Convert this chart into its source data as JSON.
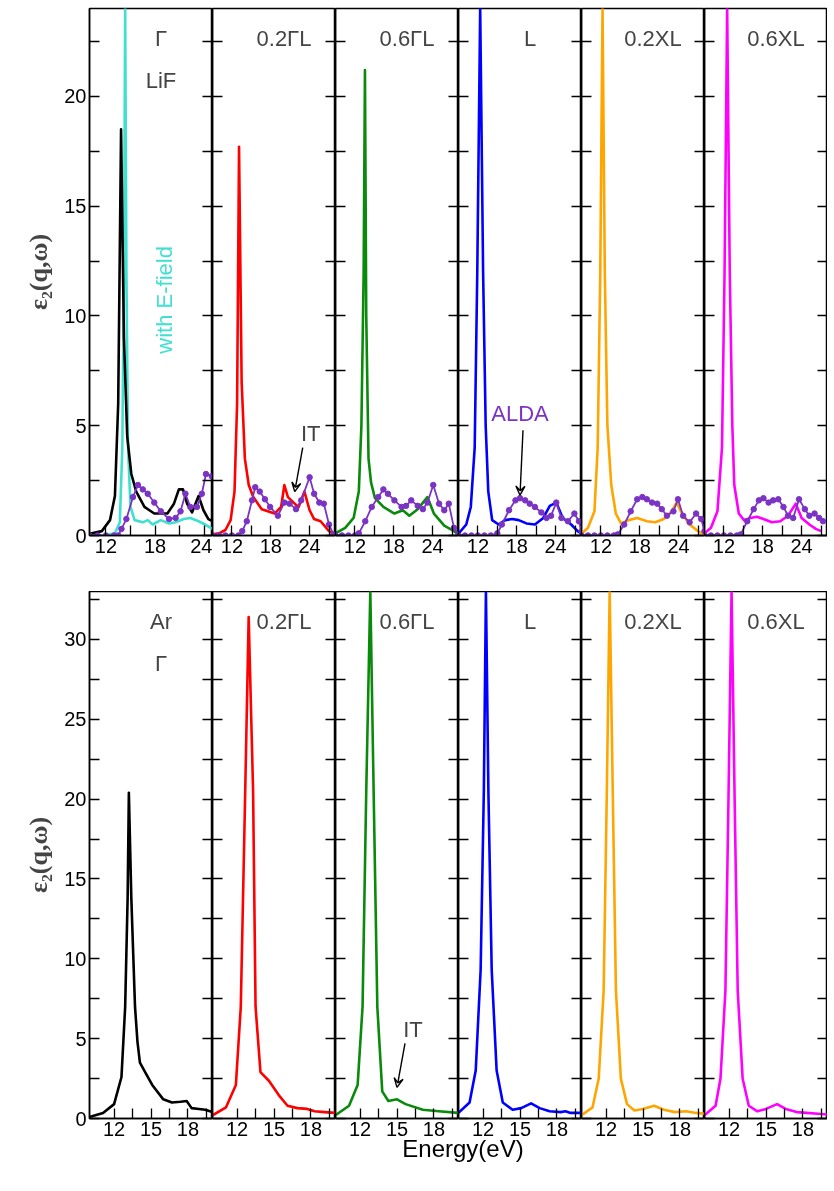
{
  "chart_data": [
    {
      "type": "line",
      "xlim": [
        10,
        25
      ],
      "xticks": [
        12,
        {
          "value": 15,
          "label": null
        },
        18,
        {
          "value": 21,
          "label": null
        },
        24
      ],
      "ylim": [
        0,
        24
      ],
      "yticks": [
        0,
        {
          "value": 2.5,
          "label": null
        },
        5,
        {
          "value": 7.5,
          "label": null
        },
        10,
        {
          "value": 12.5,
          "label": null
        },
        15,
        {
          "value": 17.5,
          "label": null
        },
        20,
        {
          "value": 22.5,
          "label": null
        }
      ],
      "ylabel": "ε₂(q,ω)",
      "annotations": [
        "Γ",
        "LiF"
      ],
      "series": [
        {
          "name": "with E-field",
          "color": "#40e0d0",
          "x": [
            10,
            12,
            13.1,
            13.7,
            14.0,
            14.2,
            14.35,
            14.5,
            14.7,
            15.0,
            15.5,
            16.5,
            17.1,
            17.7,
            18.7,
            19.7,
            20.5,
            21.5,
            22.3,
            23.3,
            24.1,
            25
          ],
          "values": [
            0,
            0.02,
            0.1,
            0.6,
            4,
            12,
            24,
            12,
            4,
            1.3,
            0.7,
            0.6,
            0.7,
            0.5,
            0.7,
            0.55,
            0.6,
            0.75,
            0.8,
            0.65,
            0.5,
            0.3
          ]
        },
        {
          "color": "#000000",
          "x": [
            10,
            11.5,
            12.5,
            13.1,
            13.5,
            13.85,
            14.2,
            14.6,
            15.1,
            15.7,
            16.7,
            17.9,
            19.5,
            20.3,
            20.9,
            21.4,
            21.9,
            22.5,
            23.3,
            23.9,
            24.5,
            25
          ],
          "values": [
            0.08,
            0.2,
            0.7,
            1.8,
            6,
            18.5,
            9,
            4.5,
            2.8,
            2.0,
            1.3,
            1.0,
            1.0,
            1.45,
            2.1,
            2.1,
            1.45,
            1.05,
            1.8,
            1.15,
            0.75,
            0.65
          ]
        },
        {
          "color": "#7b33c4",
          "marker": "circle",
          "x": [
            10,
            11,
            12,
            13,
            13.5,
            13.9,
            14.5,
            15.3,
            15.9,
            16.5,
            17.1,
            17.9,
            18.7,
            19.7,
            20.5,
            21.1,
            21.7,
            22.3,
            23.1,
            23.7,
            24.2,
            24.9
          ],
          "values": [
            0,
            0,
            0,
            0,
            0,
            0.3,
            0.75,
            1.75,
            2.3,
            2.1,
            1.9,
            1.5,
            1.1,
            0.75,
            0.8,
            1.1,
            1.9,
            1.3,
            1.3,
            1.9,
            2.8,
            2.7
          ]
        }
      ]
    },
    {
      "type": "line",
      "tick_labels": "x",
      "xlim": [
        9,
        28
      ],
      "xticks": [
        12,
        {
          "value": 15,
          "label": null
        },
        18,
        {
          "value": 21,
          "label": null
        },
        24,
        {
          "value": 27,
          "label": null
        }
      ],
      "ylim": [
        0,
        24
      ],
      "yticks": [
        0,
        {
          "value": 2.5,
          "label": null
        },
        5,
        {
          "value": 7.5,
          "label": null
        },
        10,
        {
          "value": 12.5,
          "label": null
        },
        15,
        {
          "value": 17.5,
          "label": null
        },
        20,
        {
          "value": 22.5,
          "label": null
        }
      ],
      "annotations": [
        "0.2ΓL",
        {
          "text": "IT",
          "x": 21.7,
          "y": 1.45
        }
      ],
      "series": [
        {
          "color": "#ff0000",
          "x": [
            9,
            10,
            11,
            11.8,
            12.4,
            12.8,
            13.1,
            13.5,
            14,
            14.6,
            15.3,
            16.6,
            18.6,
            19.6,
            20.1,
            20.65,
            21.7,
            22.3,
            23.2,
            24,
            24.7,
            25.7,
            27,
            27.7
          ],
          "values": [
            0.05,
            0.1,
            0.25,
            0.7,
            2,
            6,
            17.7,
            7,
            3.5,
            2.3,
            1.75,
            1.2,
            1.0,
            1.3,
            2.3,
            1.75,
            1.45,
            1.3,
            2.0,
            1.15,
            0.75,
            0.65,
            0.2,
            0.1
          ]
        },
        {
          "color": "#7b33c4",
          "marker": "circle",
          "x": [
            9,
            10,
            11,
            12,
            13,
            13.6,
            14.3,
            15.1,
            15.6,
            16.3,
            17.1,
            17.9,
            19.1,
            20.1,
            20.9,
            21.9,
            22.7,
            24,
            24.7,
            25.5,
            26.2,
            27,
            27.7
          ],
          "values": [
            0,
            0,
            0,
            0,
            0,
            0.2,
            0.65,
            1.6,
            2.2,
            2.0,
            1.65,
            1.3,
            0.9,
            1.5,
            1.45,
            1.2,
            1.6,
            2.65,
            1.9,
            1.5,
            1.45,
            0.5,
            0.05
          ]
        }
      ]
    },
    {
      "type": "line",
      "tick_labels": "x",
      "xlim": [
        9,
        28
      ],
      "xticks": [
        12,
        {
          "value": 15,
          "label": null
        },
        18,
        {
          "value": 21,
          "label": null
        },
        24,
        {
          "value": 27,
          "label": null
        }
      ],
      "ylim": [
        0,
        24
      ],
      "yticks": [
        0,
        {
          "value": 2.5,
          "label": null
        },
        5,
        {
          "value": 7.5,
          "label": null
        },
        10,
        {
          "value": 12.5,
          "label": null
        },
        15,
        {
          "value": 17.5,
          "label": null
        },
        20,
        {
          "value": 22.5,
          "label": null
        }
      ],
      "annotations": [
        "0.6ΓL"
      ],
      "series": [
        {
          "color": "#0a8a0a",
          "x": [
            9,
            10.5,
            11.8,
            12.6,
            13.0,
            13.35,
            13.55,
            13.75,
            14.1,
            14.5,
            15.1,
            16.4,
            18.1,
            19.4,
            20.4,
            21.7,
            23.2,
            24.2,
            25.8,
            27.3,
            28
          ],
          "values": [
            0.1,
            0.35,
            0.8,
            2.0,
            5,
            12,
            21.2,
            10,
            3.5,
            2.4,
            1.7,
            1.3,
            1.0,
            1.15,
            0.9,
            1.2,
            1.75,
            1.0,
            0.45,
            0.2,
            0.05
          ]
        },
        {
          "color": "#7b33c4",
          "marker": "circle",
          "x": [
            9,
            10,
            11,
            12,
            12.6,
            13.6,
            14.6,
            15.6,
            16.4,
            17.1,
            18.1,
            19.2,
            19.9,
            20.7,
            21.7,
            22.5,
            23.2,
            24.1,
            25.0,
            25.8,
            26.5,
            27.3,
            28
          ],
          "values": [
            0,
            0,
            0,
            0,
            0.1,
            0.65,
            1.3,
            1.75,
            2.1,
            1.9,
            1.6,
            1.3,
            1.35,
            1.6,
            1.35,
            1.2,
            1.5,
            2.3,
            1.45,
            1.15,
            1.45,
            0.35,
            0.05
          ]
        }
      ]
    },
    {
      "type": "line",
      "tick_labels": "x",
      "xlim": [
        9,
        28
      ],
      "xticks": [
        12,
        {
          "value": 15,
          "label": null
        },
        18,
        {
          "value": 21,
          "label": null
        },
        24,
        {
          "value": 27,
          "label": null
        }
      ],
      "ylim": [
        0,
        24
      ],
      "yticks": [
        0,
        {
          "value": 2.5,
          "label": null
        },
        5,
        {
          "value": 7.5,
          "label": null
        },
        10,
        {
          "value": 12.5,
          "label": null
        },
        15,
        {
          "value": 17.5,
          "label": null
        },
        20,
        {
          "value": 22.5,
          "label": null
        }
      ],
      "annotations": [
        "L"
      ],
      "series": [
        {
          "color": "#0000ff",
          "x": [
            9,
            10.2,
            10.9,
            11.5,
            11.9,
            12.35,
            12.8,
            13.2,
            13.6,
            14.2,
            15.2,
            16.2,
            17.3,
            18.3,
            19.5,
            20.8,
            22.1,
            23.1,
            24.1,
            25.1,
            26.4,
            27.4,
            28
          ],
          "values": [
            0.08,
            0.5,
            1.3,
            4,
            12,
            24,
            12,
            5,
            2,
            0.7,
            0.5,
            0.7,
            0.75,
            0.7,
            0.55,
            0.5,
            0.8,
            1.35,
            1.5,
            0.8,
            0.5,
            0.2,
            0.08
          ]
        },
        {
          "name": "ALDA",
          "color": "#7b33c4",
          "marker": "circle",
          "x": [
            9,
            10,
            11,
            12,
            13,
            14,
            15,
            15.7,
            16.8,
            17.8,
            18.5,
            19.3,
            20,
            20.8,
            21.8,
            22.6,
            23.3,
            24.1,
            24.9,
            25.9,
            26.9,
            27.6,
            28
          ],
          "values": [
            0,
            0,
            0,
            0,
            0,
            0,
            0.1,
            0.5,
            1.15,
            1.6,
            1.7,
            1.6,
            1.45,
            1.3,
            1.05,
            0.8,
            0.9,
            1.5,
            0.8,
            0.65,
            1.0,
            0.65,
            0.2
          ]
        }
      ]
    },
    {
      "type": "line",
      "tick_labels": "x",
      "xlim": [
        9,
        28
      ],
      "xticks": [
        12,
        {
          "value": 15,
          "label": null
        },
        18,
        {
          "value": 21,
          "label": null
        },
        24,
        {
          "value": 27,
          "label": null
        }
      ],
      "ylim": [
        0,
        24
      ],
      "yticks": [
        0,
        {
          "value": 2.5,
          "label": null
        },
        5,
        {
          "value": 7.5,
          "label": null
        },
        10,
        {
          "value": 12.5,
          "label": null
        },
        15,
        {
          "value": 17.5,
          "label": null
        },
        20,
        {
          "value": 22.5,
          "label": null
        }
      ],
      "annotations": [
        "0.2XL"
      ],
      "series": [
        {
          "color": "#ffa500",
          "x": [
            9,
            10,
            11,
            11.5,
            11.9,
            12.25,
            12.6,
            13.0,
            13.6,
            14.3,
            15.1,
            16.3,
            17.6,
            19.1,
            20.4,
            21.7,
            22.9,
            23.7,
            24.5,
            25.7,
            27,
            27.7,
            28
          ],
          "values": [
            0.08,
            0.35,
            1.1,
            4,
            12,
            24,
            12,
            5,
            2.3,
            1.0,
            0.55,
            0.7,
            0.8,
            0.65,
            0.6,
            0.75,
            1.1,
            1.5,
            1.0,
            0.5,
            0.2,
            0.08,
            0.05
          ]
        },
        {
          "color": "#7b33c4",
          "marker": "circle",
          "x": [
            9,
            10,
            11,
            12,
            13,
            14,
            14.6,
            15.6,
            16.6,
            17.6,
            18.4,
            19.1,
            19.9,
            20.7,
            21.4,
            22.2,
            23.2,
            23.9,
            24.7,
            25.7,
            26.7,
            27.5,
            28
          ],
          "values": [
            0,
            0,
            0,
            0,
            0,
            0,
            0.05,
            0.5,
            1.1,
            1.65,
            1.75,
            1.65,
            1.5,
            1.45,
            1.2,
            0.9,
            1.1,
            1.65,
            0.9,
            0.6,
            1.0,
            0.75,
            0.2
          ]
        }
      ]
    },
    {
      "type": "line",
      "tick_labels": "x",
      "xlim": [
        9,
        28
      ],
      "xticks": [
        12,
        {
          "value": 15,
          "label": null
        },
        18,
        {
          "value": 21,
          "label": null
        },
        24,
        {
          "value": 27,
          "label": null
        }
      ],
      "ylim": [
        0,
        24
      ],
      "yticks": [
        0,
        {
          "value": 2.5,
          "label": null
        },
        5,
        {
          "value": 7.5,
          "label": null
        },
        10,
        {
          "value": 12.5,
          "label": null
        },
        15,
        {
          "value": 17.5,
          "label": null
        },
        20,
        {
          "value": 22.5,
          "label": null
        }
      ],
      "annotations": [
        "0.6XL"
      ],
      "series": [
        {
          "color": "#ff00ff",
          "x": [
            9,
            10,
            11,
            11.7,
            12.1,
            12.5,
            12.9,
            13.3,
            13.6,
            14.3,
            15.1,
            16.1,
            17.1,
            18.1,
            19.4,
            20.7,
            21.9,
            23.1,
            24,
            25.2,
            26.2,
            27
          ],
          "values": [
            0.1,
            0.35,
            1.1,
            4,
            12,
            24,
            12,
            5,
            2.3,
            1.0,
            0.7,
            0.8,
            0.85,
            0.75,
            0.6,
            0.65,
            0.9,
            1.45,
            0.8,
            0.5,
            0.3,
            0.2
          ]
        },
        {
          "color": "#7b33c4",
          "marker": "circle",
          "x": [
            9,
            10,
            11,
            12,
            13,
            14,
            14.6,
            15.6,
            16.6,
            17.4,
            18.1,
            18.9,
            19.6,
            20.4,
            21.2,
            21.9,
            22.7,
            23.6,
            24.5,
            25.2,
            26,
            26.7,
            27.3
          ],
          "values": [
            0,
            0,
            0,
            0,
            0,
            0,
            0.05,
            0.65,
            1.2,
            1.6,
            1.7,
            1.5,
            1.6,
            1.65,
            1.3,
            0.9,
            0.8,
            1.65,
            1.2,
            0.9,
            1.0,
            0.8,
            0.65
          ]
        }
      ]
    },
    {
      "type": "line",
      "xlim": [
        10,
        20
      ],
      "xticks": [
        12,
        {
          "value": 13.5,
          "label": null
        },
        15,
        {
          "value": 16.5,
          "label": null
        },
        18,
        {
          "value": 19.5,
          "label": null
        }
      ],
      "ylim": [
        0,
        33
      ],
      "yticks": [
        0,
        {
          "value": 2.5,
          "label": null
        },
        5,
        {
          "value": 7.5,
          "label": null
        },
        10,
        {
          "value": 12.5,
          "label": null
        },
        15,
        {
          "value": 17.5,
          "label": null
        },
        20,
        {
          "value": 22.5,
          "label": null
        },
        25,
        {
          "value": 27.5,
          "label": null
        },
        30,
        {
          "value": 32.5,
          "label": null
        }
      ],
      "ylabel": "ε₂(q,ω)",
      "annotations": [
        "Ar",
        "Γ"
      ],
      "series": [
        {
          "color": "#000000",
          "x": [
            10,
            11.1,
            12,
            12.6,
            12.9,
            13.1,
            13.2,
            13.4,
            13.7,
            13.9,
            14.1,
            14.6,
            15.1,
            16,
            16.7,
            17.4,
            17.9,
            18.3,
            18.9,
            19.4,
            20
          ],
          "values": [
            0.1,
            0.35,
            0.9,
            2.6,
            7,
            13.8,
            20.4,
            13.8,
            7,
            4.8,
            3.5,
            2.8,
            2.1,
            1.2,
            1.0,
            1.05,
            1.1,
            0.65,
            0.6,
            0.55,
            0.4
          ]
        }
      ]
    },
    {
      "type": "line",
      "tick_labels": "x",
      "xlim": [
        10,
        20
      ],
      "xticks": [
        12,
        {
          "value": 13.5,
          "label": null
        },
        15,
        {
          "value": 16.5,
          "label": null
        },
        18,
        {
          "value": 19.5,
          "label": null
        }
      ],
      "ylim": [
        0,
        33
      ],
      "yticks": [
        0,
        {
          "value": 2.5,
          "label": null
        },
        5,
        {
          "value": 7.5,
          "label": null
        },
        10,
        {
          "value": 12.5,
          "label": null
        },
        15,
        {
          "value": 17.5,
          "label": null
        },
        20,
        {
          "value": 22.5,
          "label": null
        },
        25,
        {
          "value": 27.5,
          "label": null
        },
        30,
        {
          "value": 32.5,
          "label": null
        }
      ],
      "annotations": [
        "0.2ΓL"
      ],
      "series": [
        {
          "color": "#ff0000",
          "x": [
            10,
            11.1,
            11.9,
            12.3,
            12.66,
            12.94,
            13.3,
            13.5,
            13.9,
            14.6,
            15.4,
            16.1,
            16.9,
            17.7,
            18.3,
            19.1,
            20
          ],
          "values": [
            0.2,
            0.7,
            2.1,
            7,
            20.5,
            31.4,
            20.5,
            7,
            2.9,
            2.35,
            1.45,
            0.8,
            0.65,
            0.6,
            0.45,
            0.4,
            0.35
          ]
        }
      ]
    },
    {
      "type": "line",
      "tick_labels": "x",
      "xlim": [
        10,
        20
      ],
      "xticks": [
        12,
        {
          "value": 13.5,
          "label": null
        },
        15,
        {
          "value": 16.5,
          "label": null
        },
        18,
        {
          "value": 19.5,
          "label": null
        }
      ],
      "ylim": [
        0,
        33
      ],
      "yticks": [
        0,
        {
          "value": 2.5,
          "label": null
        },
        5,
        {
          "value": 7.5,
          "label": null
        },
        10,
        {
          "value": 12.5,
          "label": null
        },
        15,
        {
          "value": 17.5,
          "label": null
        },
        20,
        {
          "value": 22.5,
          "label": null
        },
        25,
        {
          "value": 27.5,
          "label": null
        },
        30,
        {
          "value": 32.5,
          "label": null
        }
      ],
      "xlabel": "Energy(eV)",
      "annotations": [
        "0.6ΓL",
        {
          "text": "IT",
          "x": 15,
          "y": 1.2
        }
      ],
      "series": [
        {
          "color": "#0a8a0a",
          "x": [
            10,
            11.1,
            11.8,
            12.2,
            12.5,
            12.83,
            13.1,
            13.4,
            13.8,
            14.3,
            15,
            15.7,
            17.1,
            18.4,
            20
          ],
          "values": [
            0.2,
            0.8,
            2.1,
            7,
            20.5,
            33,
            20.5,
            7,
            1.7,
            1.1,
            1.2,
            0.9,
            0.55,
            0.45,
            0.35
          ]
        }
      ]
    },
    {
      "type": "line",
      "tick_labels": "x",
      "xlim": [
        10,
        20
      ],
      "xticks": [
        12,
        {
          "value": 13.5,
          "label": null
        },
        15,
        {
          "value": 16.5,
          "label": null
        },
        18,
        {
          "value": 19.5,
          "label": null
        }
      ],
      "ylim": [
        0,
        33
      ],
      "yticks": [
        0,
        {
          "value": 2.5,
          "label": null
        },
        5,
        {
          "value": 7.5,
          "label": null
        },
        10,
        {
          "value": 12.5,
          "label": null
        },
        15,
        {
          "value": 17.5,
          "label": null
        },
        20,
        {
          "value": 22.5,
          "label": null
        },
        25,
        {
          "value": 27.5,
          "label": null
        },
        30,
        {
          "value": 32.5,
          "label": null
        }
      ],
      "annotations": [
        "L"
      ],
      "series": [
        {
          "color": "#0000ff",
          "x": [
            10,
            10.9,
            11.4,
            11.8,
            12.06,
            12.23,
            12.43,
            12.7,
            13.1,
            13.6,
            14.4,
            15.1,
            15.9,
            16.6,
            17.4,
            18.3,
            18.7,
            19.1,
            20
          ],
          "values": [
            0.35,
            1,
            3,
            9.3,
            20.5,
            33,
            20.5,
            9.3,
            3,
            1,
            0.55,
            0.65,
            0.95,
            0.65,
            0.45,
            0.4,
            0.45,
            0.35,
            0.35
          ]
        }
      ]
    },
    {
      "type": "line",
      "tick_labels": "x",
      "xlim": [
        10,
        20
      ],
      "xticks": [
        12,
        {
          "value": 13.5,
          "label": null
        },
        15,
        {
          "value": 16.5,
          "label": null
        },
        18,
        {
          "value": 19.5,
          "label": null
        }
      ],
      "ylim": [
        0,
        33
      ],
      "yticks": [
        0,
        {
          "value": 2.5,
          "label": null
        },
        5,
        {
          "value": 7.5,
          "label": null
        },
        10,
        {
          "value": 12.5,
          "label": null
        },
        15,
        {
          "value": 17.5,
          "label": null
        },
        20,
        {
          "value": 22.5,
          "label": null
        },
        25,
        {
          "value": 27.5,
          "label": null
        },
        30,
        {
          "value": 32.5,
          "label": null
        }
      ],
      "annotations": [
        "0.2XL"
      ],
      "series": [
        {
          "color": "#ffa500",
          "x": [
            10,
            10.9,
            11.4,
            11.8,
            12.05,
            12.29,
            12.55,
            12.8,
            13.2,
            13.7,
            14.3,
            15,
            15.9,
            16.7,
            17.6,
            18.5,
            19.3,
            20
          ],
          "values": [
            0.2,
            0.7,
            2.5,
            8,
            20,
            33,
            20,
            8,
            2.5,
            0.9,
            0.5,
            0.6,
            0.8,
            0.55,
            0.4,
            0.45,
            0.35,
            0.3
          ]
        }
      ]
    },
    {
      "type": "line",
      "tick_labels": "x",
      "xlim": [
        10,
        20
      ],
      "xticks": [
        12,
        {
          "value": 13.5,
          "label": null
        },
        15,
        {
          "value": 16.5,
          "label": null
        },
        18,
        {
          "value": 19.5,
          "label": null
        }
      ],
      "ylim": [
        0,
        33
      ],
      "yticks": [
        0,
        {
          "value": 2.5,
          "label": null
        },
        5,
        {
          "value": 7.5,
          "label": null
        },
        10,
        {
          "value": 12.5,
          "label": null
        },
        15,
        {
          "value": 17.5,
          "label": null
        },
        20,
        {
          "value": 22.5,
          "label": null
        },
        25,
        {
          "value": 27.5,
          "label": null
        },
        30,
        {
          "value": 32.5,
          "label": null
        }
      ],
      "annotations": [
        "0.6XL"
      ],
      "series": [
        {
          "color": "#ff00ff",
          "x": [
            10,
            10.9,
            11.3,
            11.7,
            11.95,
            12.2,
            12.45,
            12.7,
            13.1,
            13.6,
            14.3,
            15,
            15.9,
            16.6,
            17.5,
            18.3,
            19.2,
            20
          ],
          "values": [
            0.2,
            0.8,
            2.5,
            8,
            20,
            33,
            20,
            8,
            2.5,
            0.8,
            0.45,
            0.6,
            0.9,
            0.6,
            0.4,
            0.35,
            0.3,
            0.25
          ]
        }
      ]
    }
  ]
}
